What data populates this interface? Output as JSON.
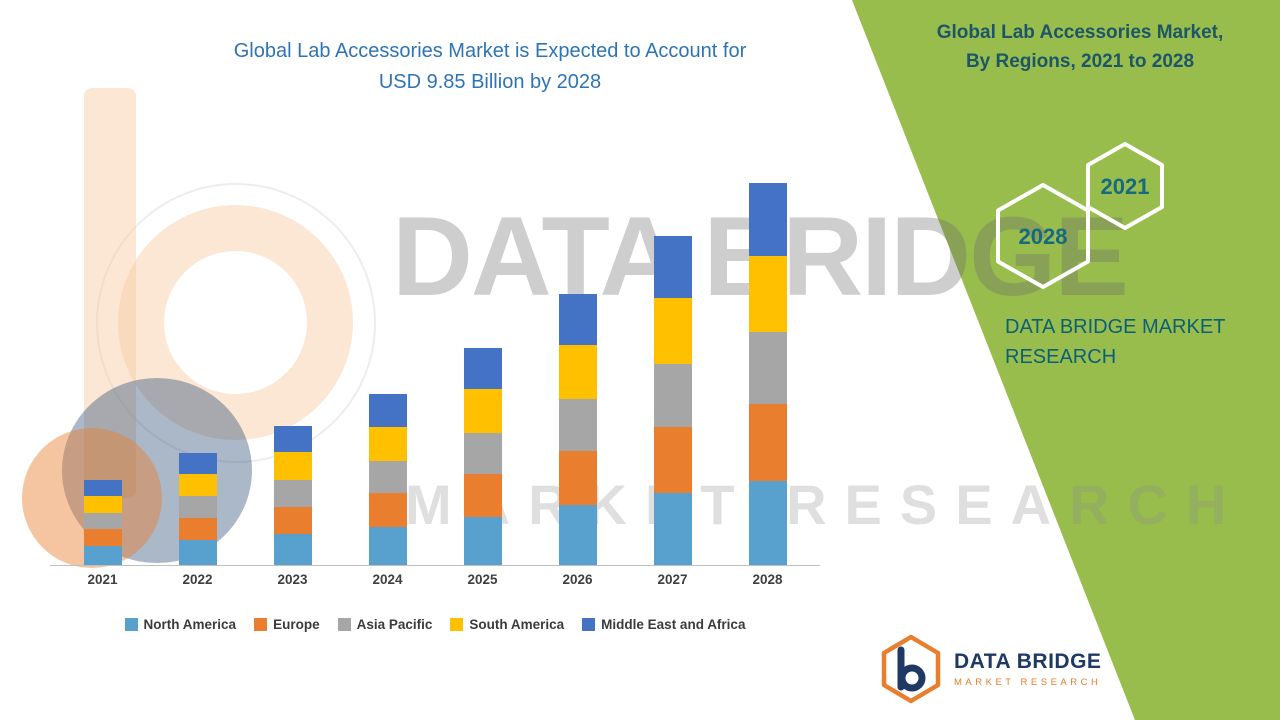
{
  "title": {
    "line1": "Global Lab Accessories Market is Expected to Account for",
    "line2": "USD 9.85 Billion by 2028"
  },
  "side_panel": {
    "title_line1": "Global Lab Accessories Market,",
    "title_line2": "By Regions, 2021 to 2028",
    "hexagon_left_year": "2028",
    "hexagon_right_year": "2021",
    "brand_line1": "DATA BRIDGE MARKET",
    "brand_line2": "RESEARCH",
    "bg_color": "#98bd4d"
  },
  "watermark": {
    "line1": "DATA BRIDGE",
    "line2": "MARKET RESEARCH"
  },
  "footer_logo": {
    "name": "DATA BRIDGE",
    "subtitle": "MARKET RESEARCH"
  },
  "colors": {
    "title_blue": "#2e74b5",
    "panel_green": "#98bd4d",
    "side_text_teal": "#1c5667",
    "logo_navy": "#1f3864",
    "logo_orange": "#e87e2e"
  },
  "chart_data": {
    "type": "bar",
    "stacked": true,
    "title": "Global Lab Accessories Market is Expected to Account for USD 9.85 Billion by 2028",
    "unit": "USD Billion",
    "categories": [
      "2021",
      "2022",
      "2023",
      "2024",
      "2025",
      "2026",
      "2027",
      "2028"
    ],
    "series": [
      {
        "name": "North America",
        "color": "#58a1cf",
        "values": [
          0.48,
          0.64,
          0.79,
          0.97,
          1.23,
          1.54,
          1.87,
          2.17
        ]
      },
      {
        "name": "Europe",
        "color": "#e87e2e",
        "values": [
          0.44,
          0.58,
          0.72,
          0.88,
          1.12,
          1.4,
          1.7,
          1.97
        ]
      },
      {
        "name": "Asia Pacific",
        "color": "#a6a6a6",
        "values": [
          0.42,
          0.55,
          0.68,
          0.84,
          1.06,
          1.33,
          1.62,
          1.87
        ]
      },
      {
        "name": "South America",
        "color": "#ffc000",
        "values": [
          0.44,
          0.58,
          0.72,
          0.88,
          1.12,
          1.4,
          1.7,
          1.97
        ]
      },
      {
        "name": "Middle East and Africa",
        "color": "#4472c4",
        "values": [
          0.42,
          0.55,
          0.68,
          0.83,
          1.07,
          1.33,
          1.61,
          1.87
        ]
      }
    ],
    "totals": [
      2.2,
      2.9,
      3.59,
      4.4,
      5.6,
      7.0,
      8.5,
      9.85
    ],
    "ylim": [
      0,
      9.85
    ],
    "grid": false,
    "legend_position": "bottom"
  }
}
